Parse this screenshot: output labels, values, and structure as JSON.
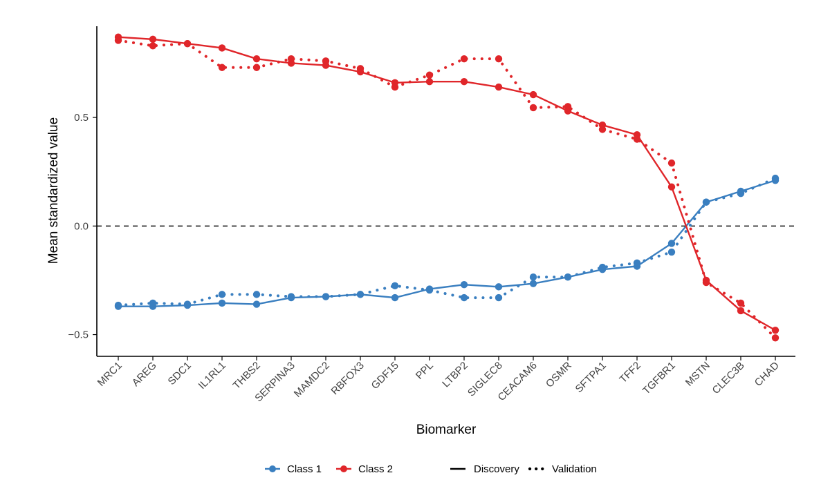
{
  "chart_data": {
    "type": "line",
    "title": "",
    "xlabel": "Biomarker",
    "ylabel": "Mean standardized value",
    "categories": [
      "MRC1",
      "AREG",
      "SDC1",
      "IL1RL1",
      "THBS2",
      "SERPINA3",
      "MAMDC2",
      "RBFOX3",
      "GDF15",
      "PPL",
      "LTBP2",
      "SIGLEC8",
      "CEACAM6",
      "OSMR",
      "SFTPA1",
      "TFF2",
      "TGFBR1",
      "MSTN",
      "CLEC3B",
      "CHAD"
    ],
    "ylim": [
      -0.6,
      0.92
    ],
    "yticks": [
      -0.5,
      0.0,
      0.5
    ],
    "ytick_labels": [
      "−0.5",
      "0.0",
      "0.5"
    ],
    "reference_line": {
      "y": 0.0,
      "style": "dashed"
    },
    "grid": false,
    "legend_position": "bottom",
    "series": [
      {
        "name": "Class 1",
        "cohort": "Discovery",
        "color": "#3a7fc0",
        "linestyle": "solid",
        "values": [
          -0.37,
          -0.37,
          -0.365,
          -0.355,
          -0.36,
          -0.33,
          -0.325,
          -0.315,
          -0.33,
          -0.29,
          -0.27,
          -0.28,
          -0.265,
          -0.235,
          -0.2,
          -0.185,
          -0.08,
          0.11,
          0.16,
          0.21
        ]
      },
      {
        "name": "Class 1",
        "cohort": "Validation",
        "color": "#3a7fc0",
        "linestyle": "dotted",
        "values": [
          -0.365,
          -0.355,
          -0.36,
          -0.315,
          -0.315,
          -0.325,
          -0.325,
          -0.315,
          -0.275,
          -0.295,
          -0.33,
          -0.33,
          -0.235,
          -0.235,
          -0.19,
          -0.17,
          -0.12,
          0.11,
          0.15,
          0.22
        ]
      },
      {
        "name": "Class 2",
        "cohort": "Discovery",
        "color": "#e0262a",
        "linestyle": "solid",
        "values": [
          0.87,
          0.86,
          0.84,
          0.82,
          0.77,
          0.75,
          0.74,
          0.71,
          0.66,
          0.665,
          0.665,
          0.64,
          0.605,
          0.53,
          0.465,
          0.42,
          0.18,
          -0.25,
          -0.39,
          -0.48
        ]
      },
      {
        "name": "Class 2",
        "cohort": "Validation",
        "color": "#e0262a",
        "linestyle": "dotted",
        "values": [
          0.855,
          0.83,
          0.84,
          0.73,
          0.73,
          0.77,
          0.76,
          0.725,
          0.64,
          0.695,
          0.77,
          0.77,
          0.545,
          0.55,
          0.445,
          0.4,
          0.29,
          -0.26,
          -0.355,
          -0.515
        ]
      }
    ]
  },
  "legend": {
    "class_items": [
      {
        "label": "Class 1",
        "color": "#3a7fc0"
      },
      {
        "label": "Class 2",
        "color": "#e0262a"
      }
    ],
    "linetype_items": [
      {
        "label": "Discovery",
        "style": "solid"
      },
      {
        "label": "Validation",
        "style": "dotted"
      }
    ]
  }
}
